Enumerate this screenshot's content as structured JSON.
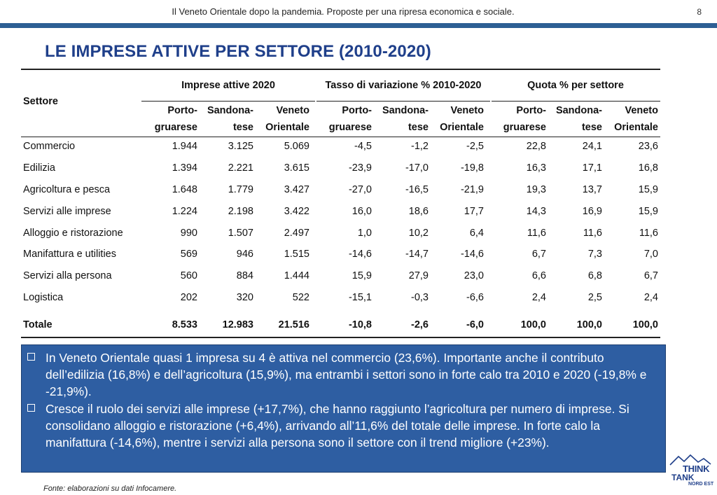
{
  "header": {
    "text": "Il Veneto Orientale dopo la pandemia. Proposte per una ripresa economica e sociale.",
    "page": "8"
  },
  "title": "LE IMPRESE ATTIVE PER SETTORE (2010-2020)",
  "table": {
    "row_header": "Settore",
    "groups": [
      "Imprese attive 2020",
      "Tasso di variazione % 2010-2020",
      "Quota % per settore"
    ],
    "subheaders": [
      {
        "l1": "Porto-",
        "l2": "gruarese"
      },
      {
        "l1": "Sandona-",
        "l2": "tese"
      },
      {
        "l1": "Veneto",
        "l2": "Orientale"
      }
    ],
    "rows": [
      {
        "label": "Commercio",
        "v": [
          "1.944",
          "3.125",
          "5.069",
          "-4,5",
          "-1,2",
          "-2,5",
          "22,8",
          "24,1",
          "23,6"
        ]
      },
      {
        "label": "Edilizia",
        "v": [
          "1.394",
          "2.221",
          "3.615",
          "-23,9",
          "-17,0",
          "-19,8",
          "16,3",
          "17,1",
          "16,8"
        ]
      },
      {
        "label": "Agricoltura e pesca",
        "v": [
          "1.648",
          "1.779",
          "3.427",
          "-27,0",
          "-16,5",
          "-21,9",
          "19,3",
          "13,7",
          "15,9"
        ]
      },
      {
        "label": "Servizi alle imprese",
        "v": [
          "1.224",
          "2.198",
          "3.422",
          "16,0",
          "18,6",
          "17,7",
          "14,3",
          "16,9",
          "15,9"
        ]
      },
      {
        "label": "Alloggio e ristorazione",
        "v": [
          "990",
          "1.507",
          "2.497",
          "1,0",
          "10,2",
          "6,4",
          "11,6",
          "11,6",
          "11,6"
        ]
      },
      {
        "label": "Manifattura e utilities",
        "v": [
          "569",
          "946",
          "1.515",
          "-14,6",
          "-14,7",
          "-14,6",
          "6,7",
          "7,3",
          "7,0"
        ]
      },
      {
        "label": "Servizi alla persona",
        "v": [
          "560",
          "884",
          "1.444",
          "15,9",
          "27,9",
          "23,0",
          "6,6",
          "6,8",
          "6,7"
        ]
      },
      {
        "label": "Logistica",
        "v": [
          "202",
          "320",
          "522",
          "-15,1",
          "-0,3",
          "-6,6",
          "2,4",
          "2,5",
          "2,4"
        ]
      }
    ],
    "total": {
      "label": "Totale",
      "v": [
        "8.533",
        "12.983",
        "21.516",
        "-10,8",
        "-2,6",
        "-6,0",
        "100,0",
        "100,0",
        "100,0"
      ]
    }
  },
  "callout": {
    "bullets": [
      "In Veneto Orientale quasi 1 impresa su 4 è attiva nel commercio (23,6%). Importante anche il contributo dell’edilizia (16,8%) e dell’agricoltura (15,9%), ma entrambi i settori sono in forte calo tra 2010 e 2020 (-19,8% e -21,9%).",
      "Cresce il ruolo dei servizi alle imprese (+17,7%), che hanno raggiunto l’agricoltura per numero di imprese. Si consolidano alloggio e ristorazione (+6,4%), arrivando all’11,6% del totale delle imprese. In forte calo la manifattura (-14,6%), mentre i servizi alla persona sono il settore con il trend migliore (+23%)."
    ]
  },
  "source": "Fonte: elaborazioni su dati Infocamere.",
  "logo": {
    "line1": "THINK",
    "line2": "TANK",
    "line3": "NORD EST"
  },
  "colors": {
    "accent_bar": "#2d5f94",
    "title": "#1f3f8a",
    "callout_bg": "#2e5ea2"
  }
}
